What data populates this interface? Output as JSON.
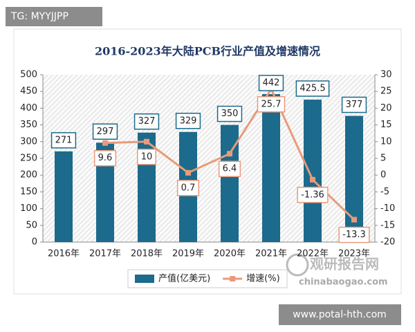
{
  "chart_data": {
    "type": "bar-line",
    "title": "2016-2023年大陆PCB行业产值及增速情况",
    "categories": [
      "2016年",
      "2017年",
      "2018年",
      "2019年",
      "2020年",
      "2021年",
      "2022年",
      "2023年"
    ],
    "series": [
      {
        "name": "产值(亿美元)",
        "type": "bar",
        "color": "#1c6a8c",
        "values": [
          271,
          297,
          327,
          329,
          350,
          442,
          425.5,
          377
        ]
      },
      {
        "name": "增速(%)",
        "type": "line",
        "axis": "y2",
        "color": "#e99a7a",
        "values": [
          null,
          9.6,
          10,
          0.7,
          6.4,
          25.7,
          -1.36,
          -13.3
        ]
      }
    ],
    "ylim": [
      0,
      500
    ],
    "yticks": [
      0,
      50,
      100,
      150,
      200,
      250,
      300,
      350,
      400,
      450,
      500
    ],
    "y2lim": [
      -20,
      30
    ],
    "y2ticks": [
      -20,
      -15,
      -10,
      -5,
      0,
      5,
      10,
      15,
      20,
      25,
      30
    ],
    "grid": false,
    "legend": "bottom"
  },
  "watermarks": {
    "top_left": "TG: MYYJJPP",
    "bottom_right": "www.potal-hth.com",
    "brand": "观研报告网",
    "brand_url": "chinabaogao.com"
  }
}
